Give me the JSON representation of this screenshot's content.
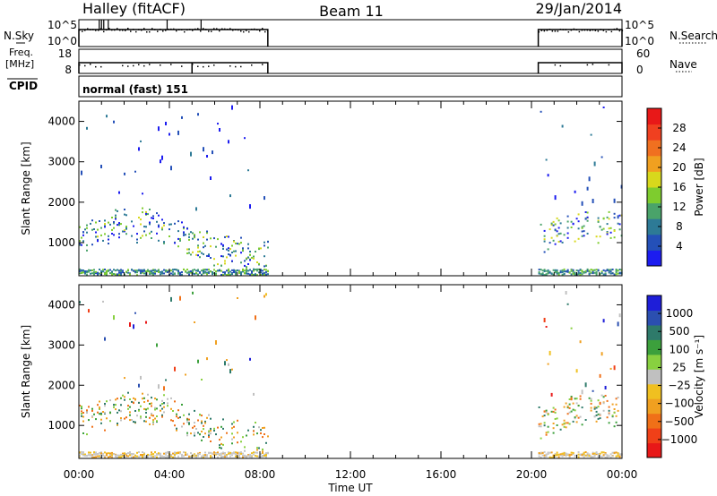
{
  "header": {
    "left": "Halley (fitACF)",
    "center": "Beam 11",
    "right": "29/Jan/2014"
  },
  "top_panels": {
    "nsky_label": "N.Sky",
    "nsky_ticks": [
      "10^5",
      "10^0"
    ],
    "nsearch_label": "N.Search",
    "nsearch_ticks": [
      "10^5",
      "10^0"
    ],
    "freq_label_1": "Freq.",
    "freq_label_2": "[MHz]",
    "freq_ticks": [
      "18",
      "8"
    ],
    "nave_label": "Nave",
    "nave_ticks": [
      "60",
      "0"
    ],
    "cpid_label": "CPID",
    "cpid_text": "normal (fast) 151"
  },
  "chart_data": [
    {
      "type": "heatmap",
      "title": "",
      "xlabel": "Time UT",
      "ylabel": "Slant Range [km]",
      "x_ticks": [
        "00:00",
        "04:00",
        "08:00",
        "12:00",
        "16:00",
        "20:00",
        "00:00"
      ],
      "xlim_hours": [
        0,
        24
      ],
      "y_ticks": [
        1000,
        2000,
        3000,
        4000
      ],
      "ylim": [
        180,
        4500
      ],
      "colorbar": {
        "label": "Power [dB]",
        "ticks": [
          "4",
          "8",
          "12",
          "16",
          "20",
          "24",
          "28"
        ],
        "range": [
          0,
          30
        ],
        "colors": [
          "#1c1cf0",
          "#2450b8",
          "#2d7a96",
          "#4aa36a",
          "#7ecc2e",
          "#d8d81c",
          "#f0a020",
          "#f07020",
          "#f04020",
          "#e81818"
        ]
      },
      "data_coverage_hours": [
        [
          0.0,
          8.35
        ],
        [
          20.3,
          24.0
        ]
      ]
    },
    {
      "type": "heatmap",
      "title": "",
      "xlabel": "Time UT",
      "ylabel": "Slant Range [km]",
      "x_ticks": [
        "00:00",
        "04:00",
        "08:00",
        "12:00",
        "16:00",
        "20:00",
        "00:00"
      ],
      "xlim_hours": [
        0,
        24
      ],
      "y_ticks": [
        1000,
        2000,
        3000,
        4000
      ],
      "ylim": [
        180,
        4500
      ],
      "colorbar": {
        "label": "Velocity [m s⁻¹]",
        "ticks": [
          "1000",
          "500",
          "100",
          "25",
          "−25",
          "−100",
          "−500",
          "−1000"
        ],
        "colors": [
          "#1e1ed8",
          "#2b4fb0",
          "#2e7a6a",
          "#3ca03c",
          "#88d040",
          "#c0c0c0",
          "#f0c020",
          "#f0a020",
          "#f07018",
          "#f04018",
          "#e81818"
        ]
      },
      "data_coverage_hours": [
        [
          0.0,
          8.35
        ],
        [
          20.3,
          24.0
        ]
      ]
    }
  ]
}
